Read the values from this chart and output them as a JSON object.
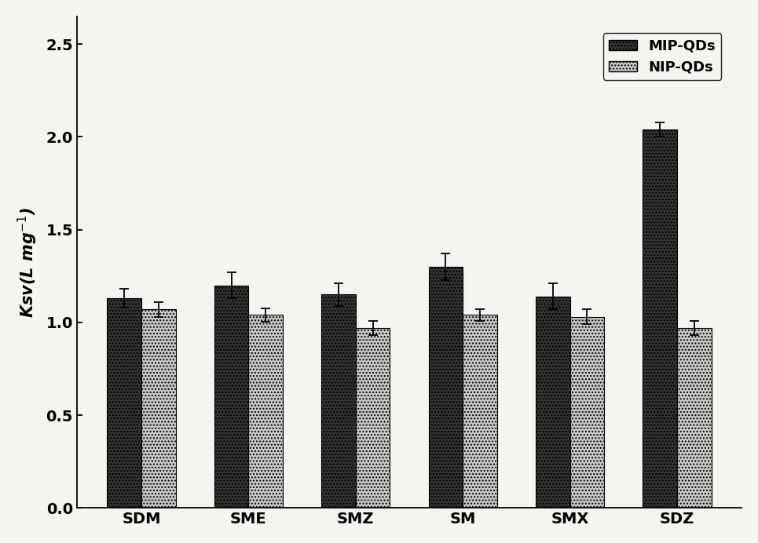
{
  "categories": [
    "SDM",
    "SME",
    "SMZ",
    "SM",
    "SMX",
    "SDZ"
  ],
  "mip_values": [
    1.13,
    1.2,
    1.15,
    1.3,
    1.14,
    2.04
  ],
  "nip_values": [
    1.07,
    1.04,
    0.97,
    1.04,
    1.03,
    0.97
  ],
  "mip_errors": [
    0.05,
    0.07,
    0.06,
    0.07,
    0.07,
    0.04
  ],
  "nip_errors": [
    0.04,
    0.035,
    0.04,
    0.03,
    0.04,
    0.04
  ],
  "mip_color": "#323232",
  "nip_color": "#c8c8c8",
  "mip_hatch": "....",
  "nip_hatch": "....",
  "ylabel": "Ksv(L mg$^{-1}$)",
  "ylim": [
    0,
    2.65
  ],
  "yticks": [
    0.0,
    0.5,
    1.0,
    1.5,
    2.0,
    2.5
  ],
  "legend_mip": "MIP-QDs",
  "legend_nip": "NIP-QDs",
  "bar_width": 0.32,
  "figsize": [
    9.65,
    6.92
  ],
  "dpi": 100,
  "bg_color": "#f5f5f0",
  "axis_fontsize": 15,
  "tick_fontsize": 14,
  "legend_fontsize": 13
}
